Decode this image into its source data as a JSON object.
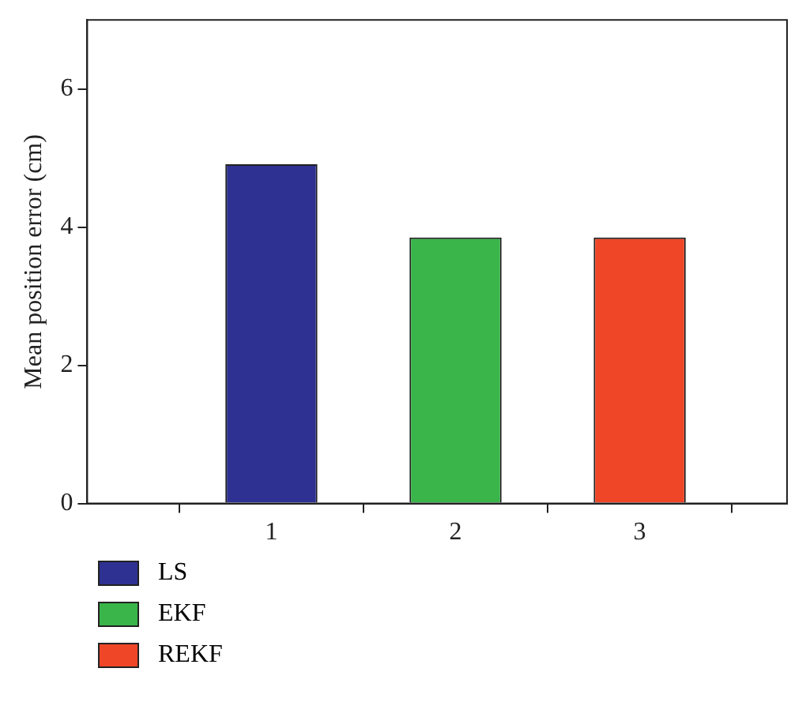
{
  "chart_data": {
    "type": "bar",
    "ylabel": "Mean position error (cm)",
    "xlim": [
      0,
      3.8
    ],
    "xticks": [
      1,
      2,
      3
    ],
    "ylim": [
      0,
      7
    ],
    "yticks": [
      0,
      2,
      4,
      6
    ],
    "grid": false,
    "legend": "bottom left",
    "series": [
      {
        "name": "LS",
        "color": "#2e3192",
        "x": [
          1
        ],
        "values": [
          4.91
        ]
      },
      {
        "name": "EKF",
        "color": "#39b54a",
        "x": [
          2
        ],
        "values": [
          3.85
        ]
      },
      {
        "name": "REKF",
        "color": "#ef4628",
        "x": [
          3
        ],
        "values": [
          3.85
        ]
      }
    ]
  }
}
